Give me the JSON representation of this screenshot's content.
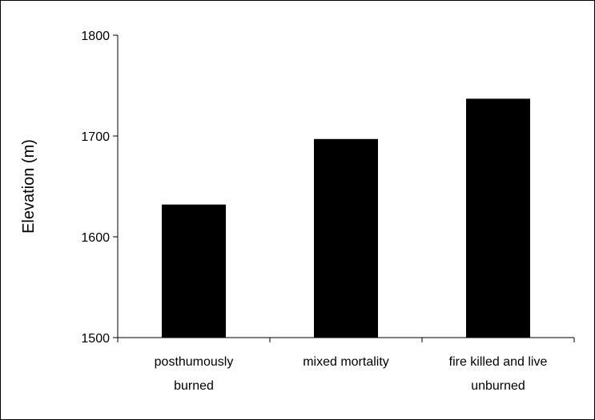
{
  "chart_data": {
    "type": "bar",
    "title": "",
    "xlabel": "",
    "ylabel": "Elevation (m)",
    "ylim": [
      1500,
      1800
    ],
    "yticks": [
      1500,
      1600,
      1700,
      1800
    ],
    "grid": false,
    "bar_color": "#000000",
    "categories": [
      [
        "posthumously",
        "burned"
      ],
      [
        "mixed mortality"
      ],
      [
        "fire killed and live",
        "unburned"
      ]
    ],
    "values": [
      1632,
      1697,
      1737
    ]
  }
}
